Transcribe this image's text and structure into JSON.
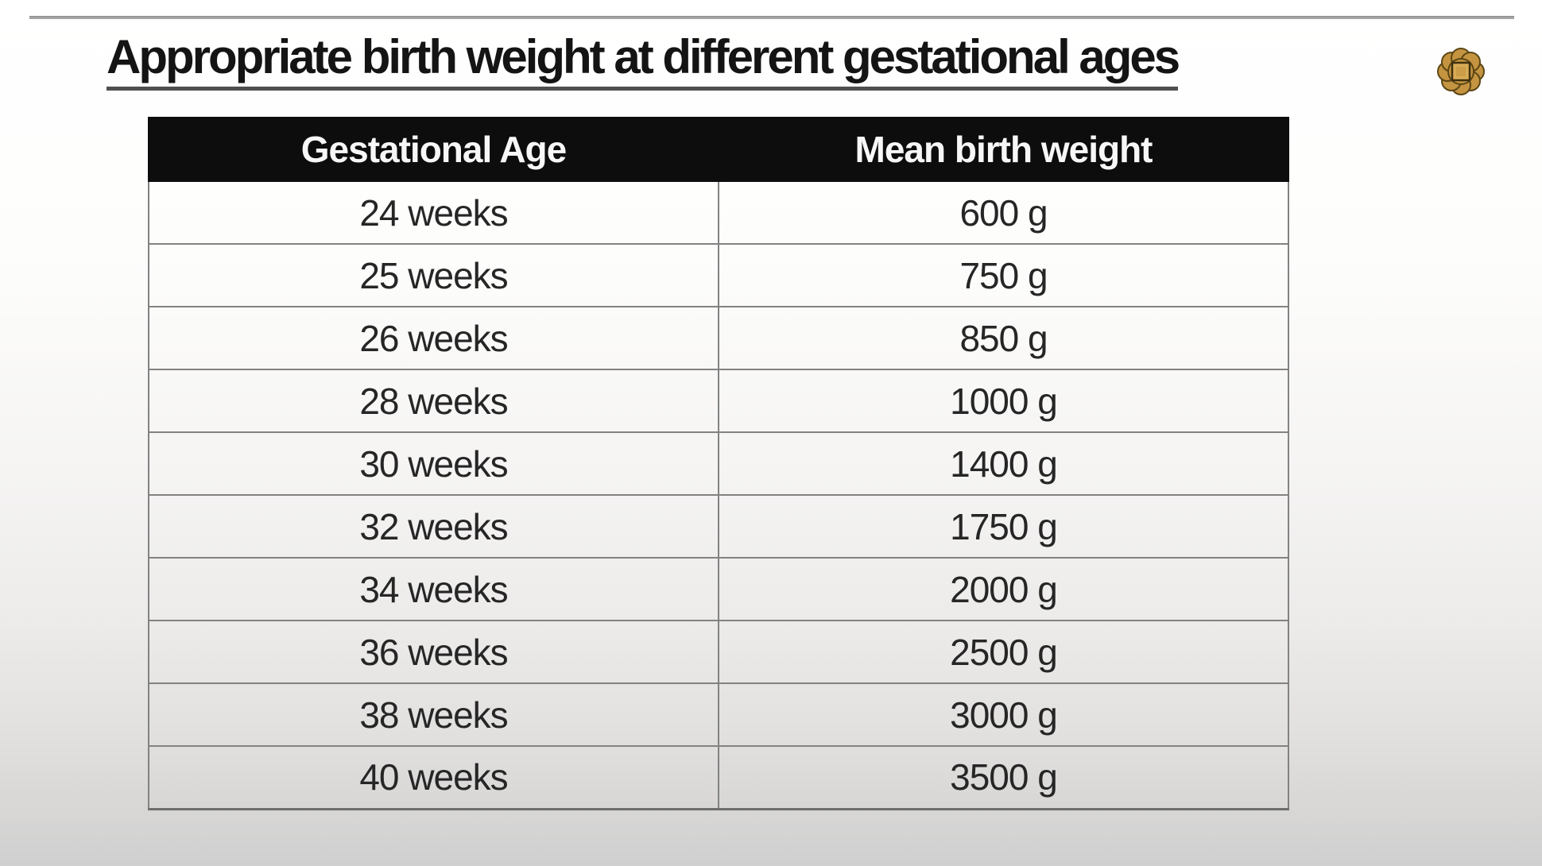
{
  "slide": {
    "title": "Appropriate birth weight at different gestational ages"
  },
  "icons": {
    "logo": "gold-rosette-flower-emblem"
  },
  "table": {
    "headers": [
      "Gestational Age",
      "Mean birth weight"
    ],
    "rows": [
      [
        "24 weeks",
        "600 g"
      ],
      [
        "25 weeks",
        "750 g"
      ],
      [
        "26 weeks",
        "850 g"
      ],
      [
        "28 weeks",
        "1000 g"
      ],
      [
        "30 weeks",
        "1400 g"
      ],
      [
        "32 weeks",
        "1750 g"
      ],
      [
        "34 weeks",
        "2000 g"
      ],
      [
        "36 weeks",
        "2500 g"
      ],
      [
        "38 weeks",
        "3000 g"
      ],
      [
        "40 weeks",
        "3500 g"
      ]
    ]
  },
  "colors": {
    "header_bg": "#0d0d0d",
    "header_text": "#f7f7f7",
    "body_text": "#262626",
    "border": "#828282",
    "border_dark": "#6e6e6e",
    "title_text": "#141414",
    "underline": "#4f4f4f",
    "rule": "#a3a3a3",
    "bg_top": "#ffffff",
    "bg_bottom": "#d0d0d0",
    "logo_gold": "#c59440",
    "logo_gold_light": "#d8ac55",
    "logo_outline": "#5c4716"
  }
}
